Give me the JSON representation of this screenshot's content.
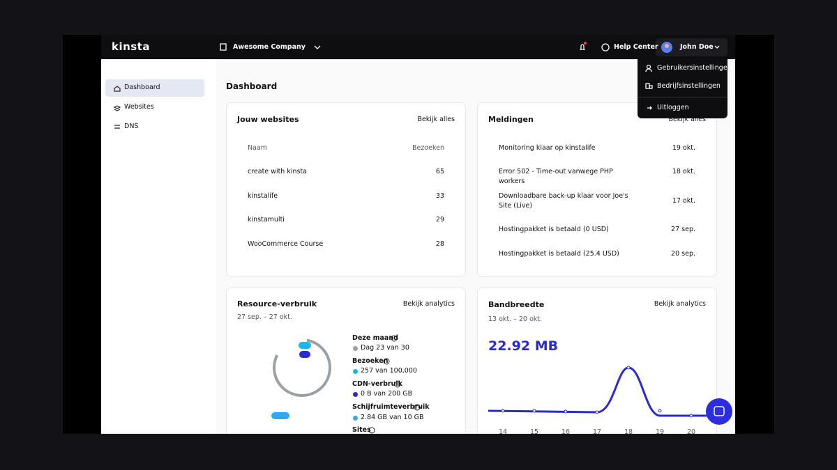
{
  "header": {
    "logo": "kinsta",
    "company": "Awesome Company",
    "help": "Help Center",
    "user": "John Doe"
  },
  "user_menu": [
    "Gebruikersinstellingen",
    "Bedrijfsinstellingen",
    "Uitloggen"
  ],
  "sidebar": [
    "Dashboard",
    "Websites",
    "DNS"
  ],
  "page_title": "Dashboard",
  "websites": {
    "title": "Jouw websites",
    "link": "Bekijk alles",
    "columns": [
      "Naam",
      "Bezoeken"
    ],
    "rows": [
      [
        "create with kinsta",
        65
      ],
      [
        "kinstalife",
        33
      ],
      [
        "kinstamulti",
        29
      ],
      [
        "WooCommerce Course",
        28
      ]
    ]
  },
  "notifications": {
    "title": "Meldingen",
    "link": "Bekijk alles",
    "rows": [
      [
        "Monitoring klaar op kinstalife",
        "19 okt."
      ],
      [
        "Error 502 - Time-out vanwege PHP workers",
        "18 okt."
      ],
      [
        "Downloadbare back-up klaar voor Joe's Site (Live)",
        "17 okt."
      ],
      [
        "Hostingpakket is betaald (0 USD)",
        "27 sep."
      ],
      [
        "Hostingpakket is betaald (25.4 USD)",
        "20 sep."
      ]
    ]
  },
  "resources": {
    "title": "Resource-verbruik",
    "link": "Bekijk analytics",
    "period": "27 sep. – 27 okt.",
    "items": [
      {
        "label": "Deze maand",
        "value": "Dag 23 van 30",
        "color": "#9aa0a6"
      },
      {
        "label": "Bezoeken",
        "value": "257 van 100,000",
        "color": "#1ab8e8"
      },
      {
        "label": "CDN-verbruik",
        "value": "0 B van 200 GB",
        "color": "#2a2ad1"
      },
      {
        "label": "Schijfruimteverbruik",
        "value": "2.84 GB van 10 GB",
        "color": "#31a8f0"
      },
      {
        "label": "Sites"
      }
    ]
  },
  "bandwidth": {
    "title": "Bandbreedte",
    "link": "Bekijk analytics",
    "period": "13 okt. – 20 okt.",
    "total": "22.92 MB",
    "x_labels": [
      14,
      15,
      16,
      17,
      18,
      19,
      20
    ]
  }
}
